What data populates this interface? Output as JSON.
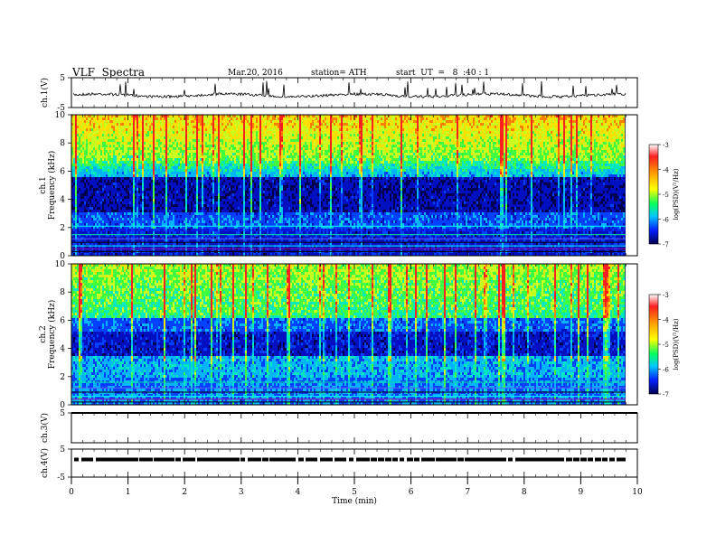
{
  "header": {
    "title": "VLF  Spectra",
    "date": "Mar.20, 2016",
    "station": "station= ATH",
    "start": "start  UT  =   8  :40 : 1"
  },
  "chart_data": {
    "type": "heatmap",
    "xlabel": "Time  (min)",
    "xlim": [
      0,
      10
    ],
    "x_ticks": [
      "0",
      "1",
      "2",
      "3",
      "4",
      "5",
      "6",
      "7",
      "8",
      "9",
      "10"
    ],
    "panels": [
      {
        "id": "ch1-waveform",
        "ylabel": "ch.1(V)",
        "ylim": [
          -5,
          5
        ],
        "y_ticks": [
          "5",
          "-5"
        ],
        "baseline": 0,
        "style": "noise"
      },
      {
        "id": "ch1-spectrogram",
        "ylabel_top": "ch.1",
        "ylabel": "Frequency  (kHz)",
        "ylim": [
          0,
          10
        ],
        "y_ticks": [
          "0",
          "2",
          "4",
          "6",
          "8",
          "10"
        ],
        "colorbar": {
          "label": "log(PSD)(V²/Hz)",
          "range": [
            -7,
            -3
          ],
          "ticks": [
            "-3",
            "-4",
            "-5",
            "-6",
            "-7"
          ],
          "colors": [
            "#ffffff",
            "#ff2020",
            "#ffa500",
            "#ffff00",
            "#00ff60",
            "#00c8ff",
            "#0020ff",
            "#000050"
          ]
        }
      },
      {
        "id": "ch2-spectrogram",
        "ylabel_top": "ch.2",
        "ylabel": "Frequency  (kHz)",
        "ylim": [
          0,
          10
        ],
        "y_ticks": [
          "0",
          "2",
          "4",
          "6",
          "8",
          "10"
        ],
        "colorbar": {
          "label": "log(PSD)(V²/Hz)",
          "range": [
            -7,
            -3
          ],
          "ticks": [
            "-3",
            "-4",
            "-5",
            "-6",
            "-7"
          ],
          "colors": [
            "#ffffff",
            "#ff2020",
            "#ffa500",
            "#ffff00",
            "#00ff60",
            "#00c8ff",
            "#0020ff",
            "#000050"
          ]
        }
      },
      {
        "id": "ch3-waveform",
        "ylabel": "ch.3(V)",
        "ylim": [
          -5,
          5
        ],
        "y_ticks": [
          "5"
        ],
        "baseline": 5,
        "style": "flat"
      },
      {
        "id": "ch4-waveform",
        "ylabel": "ch.4(V)",
        "ylim": [
          -5,
          5
        ],
        "y_ticks": [
          "5",
          "-5"
        ],
        "baseline": 0,
        "style": "dashed"
      }
    ]
  }
}
